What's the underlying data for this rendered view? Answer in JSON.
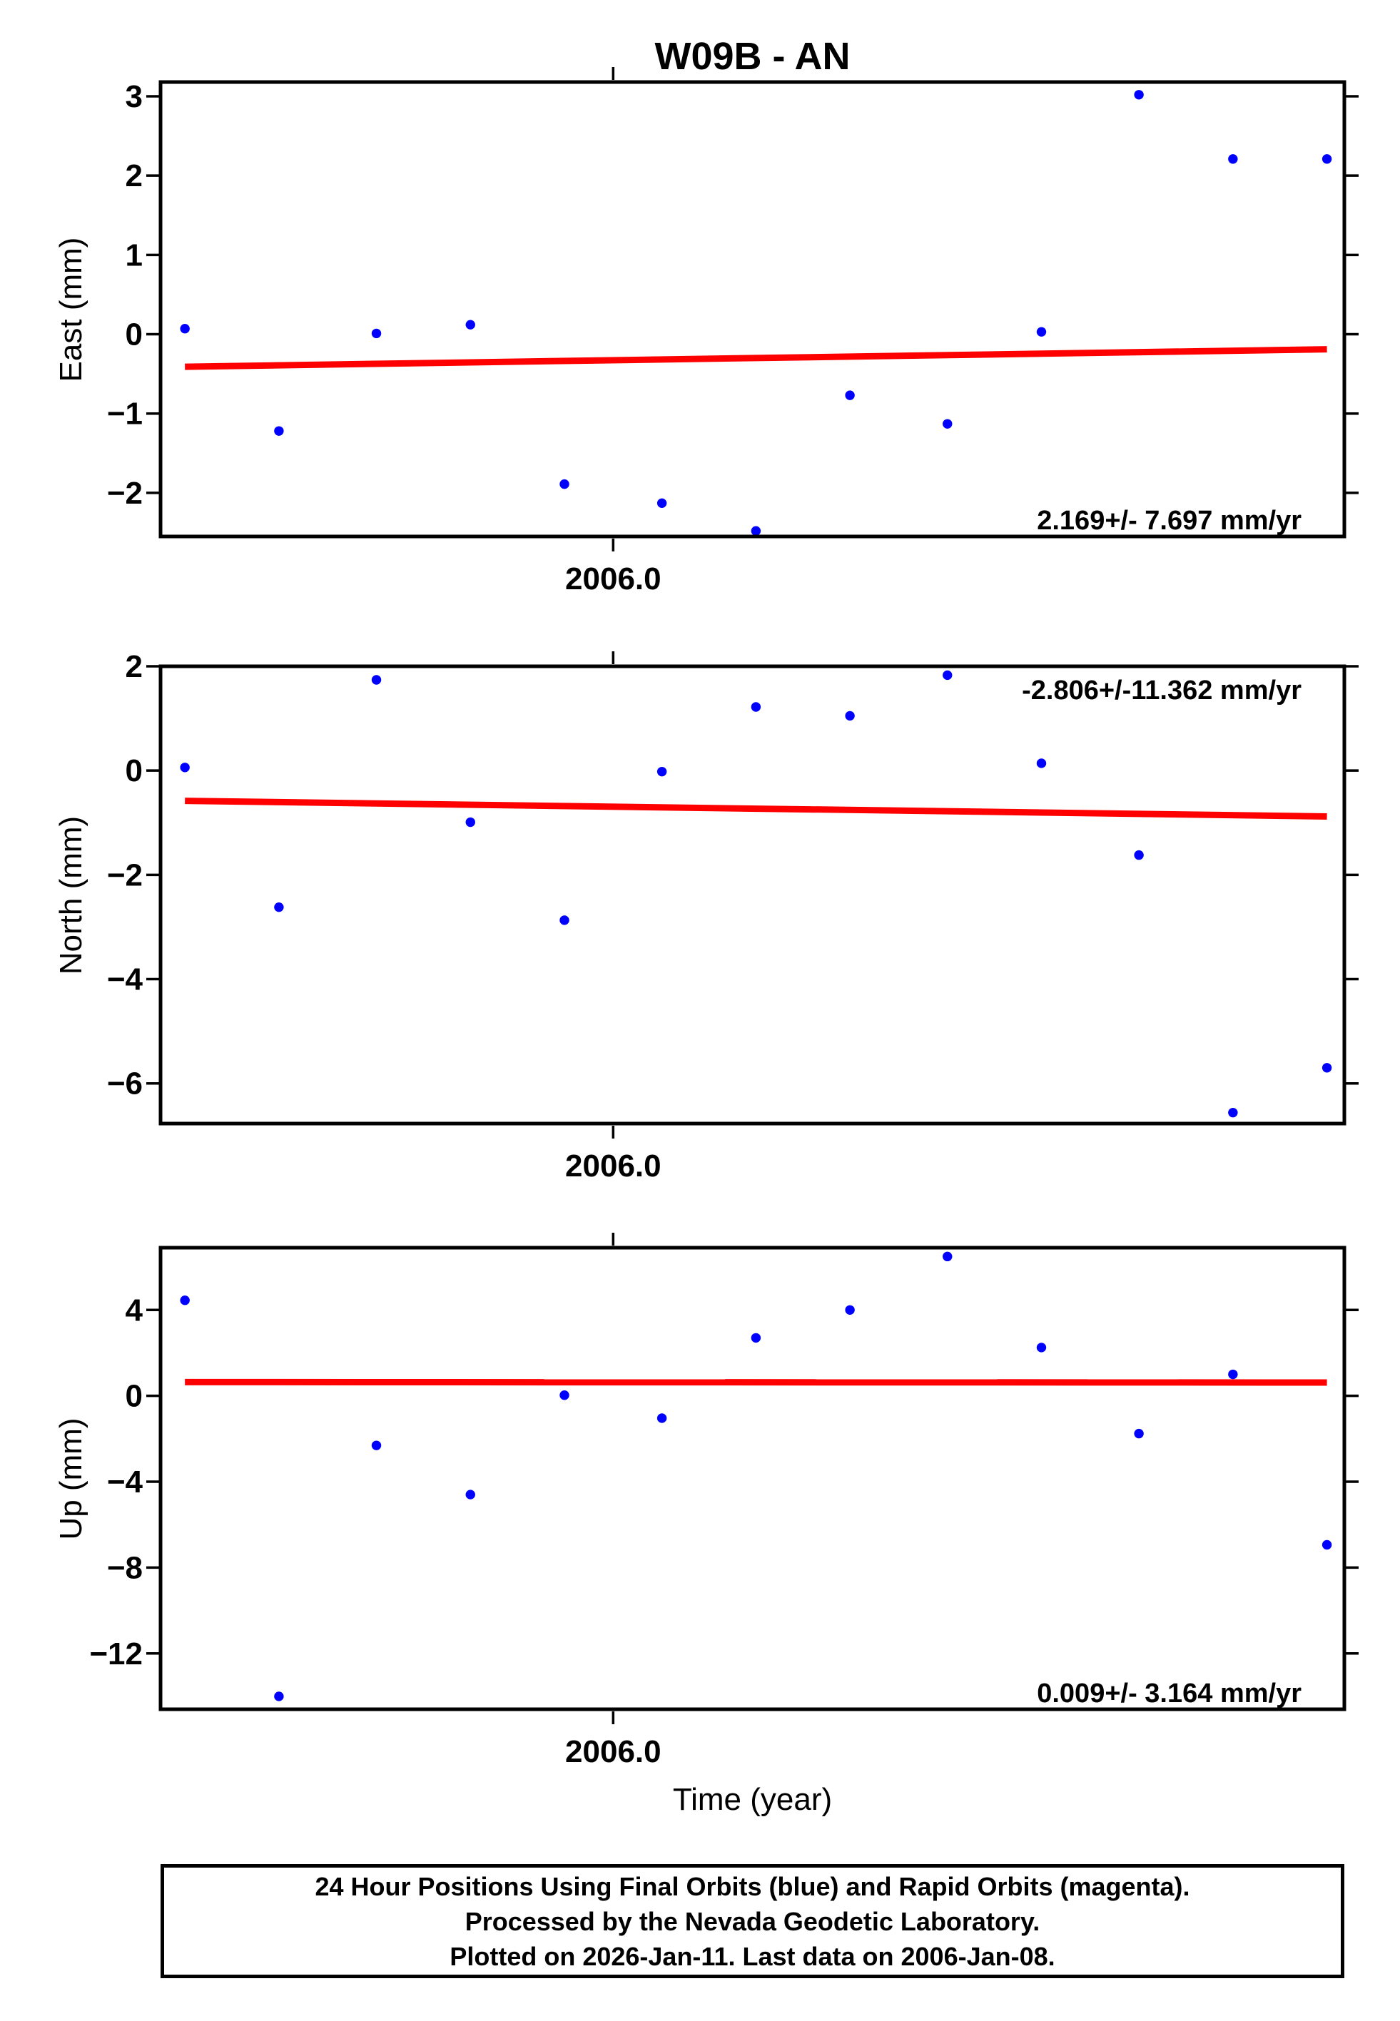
{
  "title": "W09B - AN",
  "xlabel": "Time (year)",
  "colors": {
    "final_orbits": "#0000ff",
    "rapid_orbits": "#ff00ff",
    "trend_line": "#ff0000",
    "frame": "#000000",
    "background": "#ffffff"
  },
  "footer": {
    "line1": "24 Hour Positions Using Final Orbits (blue) and Rapid Orbits (magenta).",
    "line2": "Processed by the Nevada Geodetic Laboratory.",
    "line3": "Plotted on 2026-Jan-11. Last data on 2006-Jan-08."
  },
  "chart_data": [
    {
      "id": "east",
      "type": "scatter",
      "ylabel": "East (mm)",
      "marker": "circle",
      "x": [
        2005.9877,
        2005.9904,
        2005.9932,
        2005.9959,
        2005.9986,
        2006.0014,
        2006.0041,
        2006.0068,
        2006.0096,
        2006.0123,
        2006.0151,
        2006.0178,
        2006.0205
      ],
      "y": [
        0.07,
        -1.22,
        0.01,
        0.12,
        -1.89,
        -2.13,
        -2.48,
        -0.77,
        -1.13,
        0.03,
        3.02,
        2.21,
        2.21
      ],
      "xlim": [
        2005.987,
        2006.021
      ],
      "ylim": [
        -2.55,
        3.18
      ],
      "yticks": [
        [
          3,
          "3"
        ],
        [
          2,
          "2"
        ],
        [
          1,
          "1"
        ],
        [
          0,
          "0"
        ],
        [
          -1,
          "−1"
        ],
        [
          -2,
          "−2"
        ]
      ],
      "xtick": {
        "value": 2006.0,
        "label": "2006.0"
      },
      "trend_line": {
        "y_start": -0.41,
        "y_end": -0.19
      },
      "annotation": "2.169+/- 7.697 mm/yr",
      "annotation_corner": "bottom-right",
      "grid": false,
      "legend": false
    },
    {
      "id": "north",
      "type": "scatter",
      "ylabel": "North (mm)",
      "marker": "circle",
      "x": [
        2005.9877,
        2005.9904,
        2005.9932,
        2005.9959,
        2005.9986,
        2006.0014,
        2006.0041,
        2006.0068,
        2006.0096,
        2006.0123,
        2006.0151,
        2006.0178,
        2006.0205
      ],
      "y": [
        0.06,
        -2.62,
        1.74,
        -0.99,
        -2.87,
        -0.02,
        1.22,
        1.05,
        1.83,
        0.14,
        -1.62,
        -6.56,
        -5.7
      ],
      "xlim": [
        2005.987,
        2006.021
      ],
      "ylim": [
        -6.77,
        2.0
      ],
      "yticks": [
        [
          2,
          "2"
        ],
        [
          0,
          "0"
        ],
        [
          -2,
          "−2"
        ],
        [
          -4,
          "−4"
        ],
        [
          -6,
          "−6"
        ]
      ],
      "xtick": {
        "value": 2006.0,
        "label": "2006.0"
      },
      "trend_line": {
        "y_start": -0.58,
        "y_end": -0.88
      },
      "annotation": "-2.806+/-11.362 mm/yr",
      "annotation_corner": "top-right",
      "grid": false,
      "legend": false
    },
    {
      "id": "up",
      "type": "scatter",
      "ylabel": "Up (mm)",
      "marker": "circle",
      "x": [
        2005.9877,
        2005.9904,
        2005.9932,
        2005.9959,
        2005.9986,
        2006.0014,
        2006.0041,
        2006.0068,
        2006.0096,
        2006.0123,
        2006.0151,
        2006.0178,
        2006.0205
      ],
      "y": [
        4.45,
        -14.0,
        -2.31,
        -4.6,
        0.03,
        -1.04,
        2.7,
        4.0,
        6.49,
        2.25,
        -1.76,
        1.0,
        -6.94
      ],
      "xlim": [
        2005.987,
        2006.021
      ],
      "ylim": [
        -14.6,
        6.9
      ],
      "yticks": [
        [
          4,
          "4"
        ],
        [
          0,
          "0"
        ],
        [
          -4,
          "−4"
        ],
        [
          -8,
          "−8"
        ],
        [
          -12,
          "−12"
        ]
      ],
      "xtick": {
        "value": 2006.0,
        "label": "2006.0"
      },
      "trend_line": {
        "y_start": 0.64,
        "y_end": 0.62
      },
      "annotation": "0.009+/- 3.164 mm/yr",
      "annotation_corner": "bottom-right",
      "grid": false,
      "legend": false
    }
  ]
}
